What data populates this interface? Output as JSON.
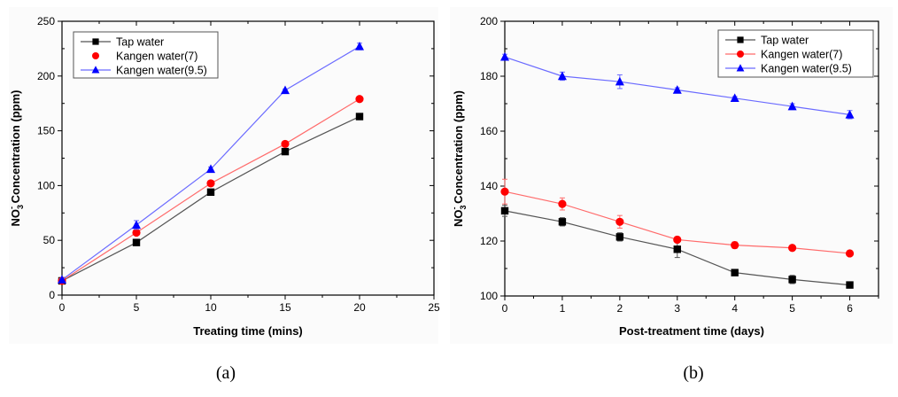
{
  "chart_data": [
    {
      "id": "a",
      "type": "line",
      "caption": "(a)",
      "title": "",
      "xlabel": "Treating time (mins)",
      "ylabel": {
        "prefix": "NO",
        "sub": "3",
        "sup": "-",
        "suffix": " Concentration (ppm)"
      },
      "xlim": [
        0,
        25
      ],
      "ylim": [
        0,
        250
      ],
      "xticks": [
        0,
        5,
        10,
        15,
        20,
        25
      ],
      "yticks": [
        0,
        50,
        100,
        150,
        200,
        250
      ],
      "grid": false,
      "legend_position": "top-left",
      "x": [
        0,
        5,
        10,
        15,
        20
      ],
      "series": [
        {
          "name": "Tap water",
          "color": "#000000",
          "line_color": "#555555",
          "marker": "square",
          "legend_line": true,
          "values": [
            13,
            48,
            94,
            131,
            163
          ],
          "errors": [
            1,
            1,
            2,
            1,
            1
          ]
        },
        {
          "name": "Kangen water(7)",
          "color": "#ff0000",
          "line_color": "#ff6b6b",
          "marker": "circle",
          "legend_line": false,
          "values": [
            13,
            57,
            102,
            138,
            179
          ],
          "errors": [
            1,
            2,
            2,
            2,
            1
          ]
        },
        {
          "name": "Kangen water(9.5)",
          "color": "#0000ff",
          "line_color": "#6b6bff",
          "marker": "triangle",
          "legend_line": true,
          "values": [
            14,
            64,
            115,
            187,
            227
          ],
          "errors": [
            1,
            4,
            2,
            1,
            3
          ]
        }
      ]
    },
    {
      "id": "b",
      "type": "line",
      "caption": "(b)",
      "title": "",
      "xlabel": "Post-treatment time (days)",
      "ylabel": {
        "prefix": "NO",
        "sub": "3",
        "sup": "-",
        "suffix": " Concentration (ppm)"
      },
      "xlim": [
        0,
        6.5
      ],
      "ylim": [
        100,
        200
      ],
      "xticks": [
        0,
        1,
        2,
        3,
        4,
        5,
        6
      ],
      "yticks": [
        100,
        120,
        140,
        160,
        180,
        200
      ],
      "grid": false,
      "legend_position": "top-right",
      "x": [
        0,
        1,
        2,
        3,
        4,
        5,
        6
      ],
      "series": [
        {
          "name": "Tap water",
          "color": "#000000",
          "line_color": "#555555",
          "marker": "square",
          "legend_line": true,
          "values": [
            131,
            127,
            121.5,
            117,
            108.5,
            106,
            104
          ],
          "errors": [
            2,
            1.5,
            1.5,
            3,
            1,
            1.5,
            0.5
          ]
        },
        {
          "name": "Kangen water(7)",
          "color": "#ff0000",
          "line_color": "#ff6b6b",
          "marker": "circle",
          "legend_line": true,
          "values": [
            138,
            133.5,
            127,
            120.5,
            118.5,
            117.5,
            115.5
          ],
          "errors": [
            4.5,
            2.2,
            2.3,
            1,
            1.2,
            0.8,
            0.5
          ]
        },
        {
          "name": "Kangen water(9.5)",
          "color": "#0000ff",
          "line_color": "#6b6bff",
          "marker": "triangle",
          "legend_line": true,
          "values": [
            187,
            180,
            178,
            175,
            172,
            169,
            166
          ],
          "errors": [
            1,
            1.5,
            2.5,
            0.8,
            0.6,
            1,
            1.5
          ]
        }
      ]
    }
  ]
}
